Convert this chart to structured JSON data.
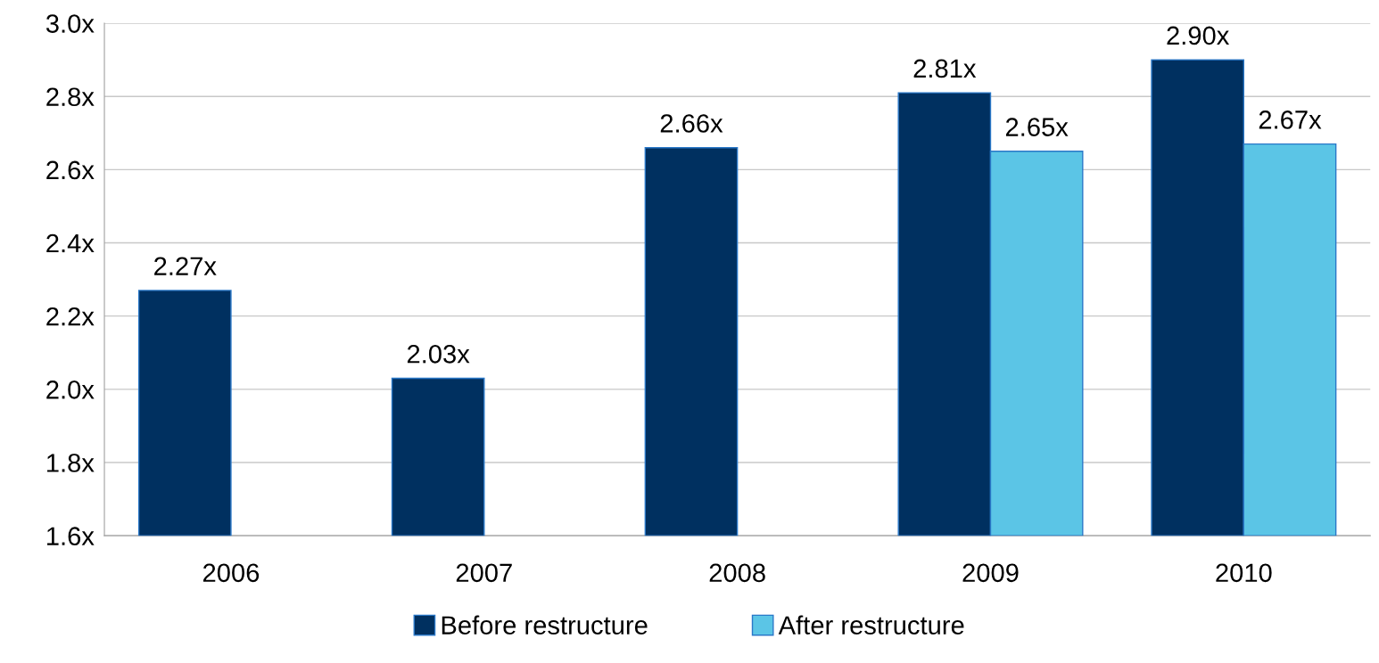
{
  "chart_data": {
    "type": "bar",
    "categories": [
      "2006",
      "2007",
      "2008",
      "2009",
      "2010"
    ],
    "series": [
      {
        "name": "Before restructure",
        "color": "#003060",
        "values": [
          2.27,
          2.03,
          2.66,
          2.81,
          2.9
        ],
        "value_labels": [
          "2.27x",
          "2.03x",
          "2.66x",
          "2.81x",
          "2.90x"
        ]
      },
      {
        "name": "After restructure",
        "color": "#5bc5e6",
        "values": [
          null,
          null,
          null,
          2.65,
          2.67
        ],
        "value_labels": [
          null,
          null,
          null,
          "2.65x",
          "2.67x"
        ]
      }
    ],
    "ylim": [
      1.6,
      3.0
    ],
    "yticks": [
      {
        "value": 1.6,
        "label": "1.6x"
      },
      {
        "value": 1.8,
        "label": "1.8x"
      },
      {
        "value": 2.0,
        "label": "2.0x"
      },
      {
        "value": 2.2,
        "label": "2.2x"
      },
      {
        "value": 2.4,
        "label": "2.4x"
      },
      {
        "value": 2.6,
        "label": "2.6x"
      },
      {
        "value": 2.8,
        "label": "2.8x"
      },
      {
        "value": 3.0,
        "label": "3.0x"
      }
    ],
    "grid": "y",
    "legend": "bottom"
  }
}
